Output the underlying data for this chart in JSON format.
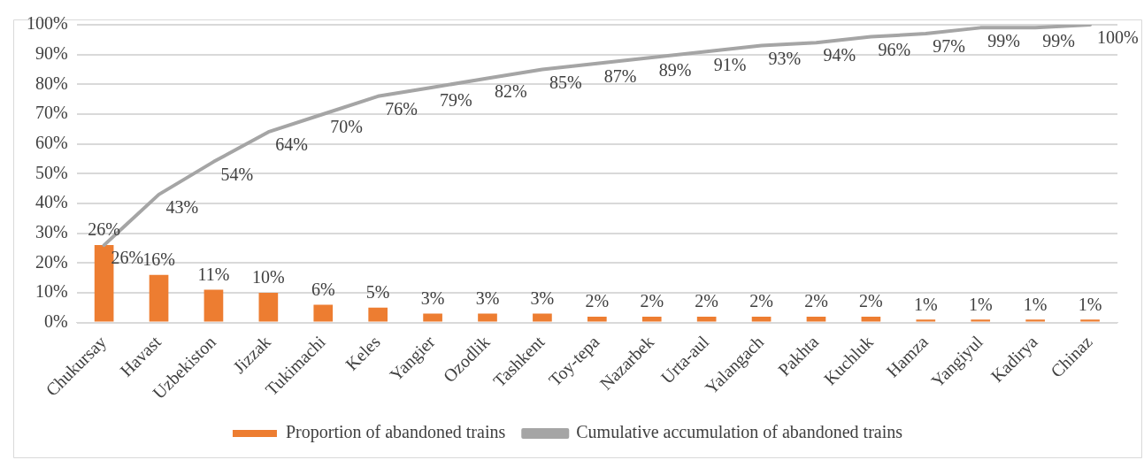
{
  "chart_data": {
    "type": "bar",
    "categories": [
      "Chukursay",
      "Havast",
      "Uzbekiston",
      "Jizzak",
      "Tukimachi",
      "Keles",
      "Yangier",
      "Ozodlik",
      "Tashkent",
      "Toy-tepa",
      "Nazarbek",
      "Urta-aul",
      "Yalangach",
      "Pakhta",
      "Kuchluk",
      "Hamza",
      "Yangiyul",
      "Kadirya",
      "Chinaz"
    ],
    "series": [
      {
        "name": "Proportion of abandoned trains",
        "color": "#ed7d31",
        "values": [
          26,
          16,
          11,
          10,
          6,
          5,
          3,
          3,
          3,
          2,
          2,
          2,
          2,
          2,
          2,
          1,
          1,
          1,
          1
        ],
        "value_labels": [
          "26%",
          "16%",
          "11%",
          "10%",
          "6%",
          "5%",
          "3%",
          "3%",
          "3%",
          "2%",
          "2%",
          "2%",
          "2%",
          "2%",
          "2%",
          "1%",
          "1%",
          "1%",
          "1%"
        ]
      },
      {
        "name": "Cumulative accumulation of abandoned trains",
        "type": "line",
        "color": "#a5a5a5",
        "values": [
          26,
          43,
          54,
          64,
          70,
          76,
          79,
          82,
          85,
          87,
          89,
          91,
          93,
          94,
          96,
          97,
          99,
          99,
          100
        ],
        "value_labels": [
          "26%",
          "43%",
          "54%",
          "64%",
          "70%",
          "76%",
          "79%",
          "82%",
          "85%",
          "87%",
          "89%",
          "91%",
          "93%",
          "94%",
          "96%",
          "97%",
          "99%",
          "99%",
          "100%"
        ]
      }
    ],
    "ylim": [
      0,
      100
    ],
    "yticks": [
      {
        "value": 0,
        "label": "0%"
      },
      {
        "value": 10,
        "label": "10%"
      },
      {
        "value": 20,
        "label": "20%"
      },
      {
        "value": 30,
        "label": "30%"
      },
      {
        "value": 40,
        "label": "40%"
      },
      {
        "value": 50,
        "label": "50%"
      },
      {
        "value": 60,
        "label": "60%"
      },
      {
        "value": 70,
        "label": "70%"
      },
      {
        "value": 80,
        "label": "80%"
      },
      {
        "value": 90,
        "label": "90%"
      },
      {
        "value": 100,
        "label": "100%"
      }
    ],
    "grid": "y",
    "legend": "bottom",
    "marker": "none"
  }
}
